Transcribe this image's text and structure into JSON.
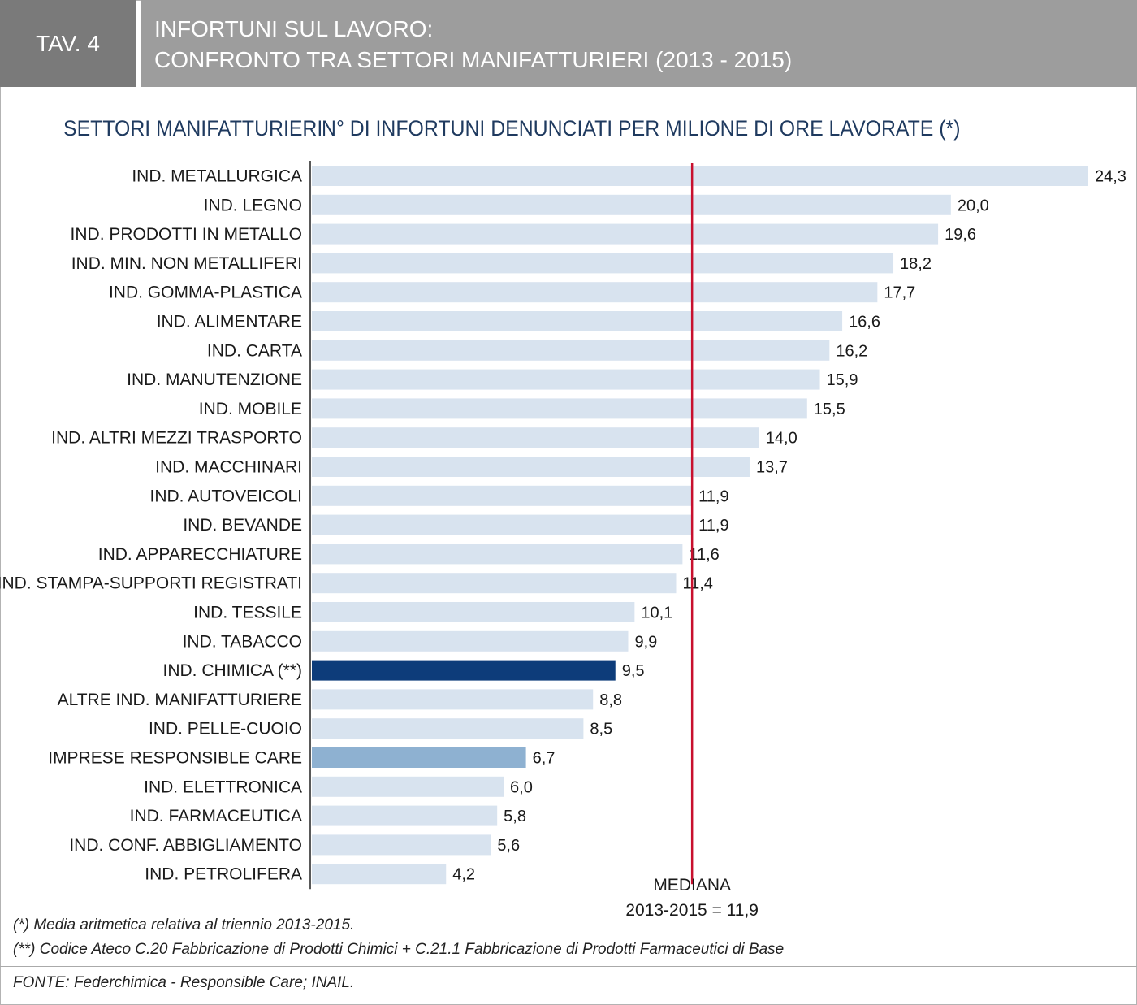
{
  "header": {
    "tav_label": "TAV. 4",
    "title_line1": "INFORTUNI SUL LAVORO:",
    "title_line2": "CONFRONTO TRA SETTORI MANIFATTURIERI (2013 - 2015)"
  },
  "columns": {
    "left_header": "SETTORI MANIFATTURIERI",
    "right_header": "N° DI INFORTUNI DENUNCIATI PER MILIONE DI ORE LAVORATE (*)"
  },
  "chart_data": {
    "type": "bar",
    "orientation": "horizontal",
    "categories": [
      "IND. METALLURGICA",
      "IND. LEGNO",
      "IND. PRODOTTI IN METALLO",
      "IND. MIN. NON METALLIFERI",
      "IND. GOMMA-PLASTICA",
      "IND. ALIMENTARE",
      "IND. CARTA",
      "IND. MANUTENZIONE",
      "IND. MOBILE",
      "IND. ALTRI MEZZI TRASPORTO",
      "IND. MACCHINARI",
      "IND. AUTOVEICOLI",
      "IND. BEVANDE",
      "IND. APPARECCHIATURE",
      "IND. STAMPA-SUPPORTI REGISTRATI",
      "IND. TESSILE",
      "IND. TABACCO",
      "IND. CHIMICA (**)",
      "ALTRE IND. MANIFATTURIERE",
      "IND. PELLE-CUOIO",
      "IMPRESE RESPONSIBLE CARE",
      "IND. ELETTRONICA",
      "IND. FARMACEUTICA",
      "IND. CONF. ABBIGLIAMENTO",
      "IND. PETROLIFERA"
    ],
    "values": [
      24.3,
      20.0,
      19.6,
      18.2,
      17.7,
      16.6,
      16.2,
      15.9,
      15.5,
      14.0,
      13.7,
      11.9,
      11.9,
      11.6,
      11.4,
      10.1,
      9.9,
      9.5,
      8.8,
      8.5,
      6.7,
      6.0,
      5.8,
      5.6,
      4.2
    ],
    "value_labels": [
      "24,3",
      "20,0",
      "19,6",
      "18,2",
      "17,7",
      "16,6",
      "16,2",
      "15,9",
      "15,5",
      "14,0",
      "13,7",
      "11,9",
      "11,9",
      "11,6",
      "11,4",
      "10,1",
      "9,9",
      "9,5",
      "8,8",
      "8,5",
      "6,7",
      "6,0",
      "5,8",
      "5,6",
      "4,2"
    ],
    "xlim": [
      0,
      24.3
    ],
    "median": 11.9,
    "median_label_line1": "MEDIANA",
    "median_label_line2": "2013-2015 = 11,9",
    "colors": {
      "default": "#d8e3ef",
      "highlight_chimica": "#0d3c7a",
      "highlight_responsible_care": "#8eb1d1",
      "median_line": "#c8102e",
      "axis": "#222222"
    },
    "highlights": {
      "IND. CHIMICA (**)": "highlight_chimica",
      "IMPRESE RESPONSIBLE CARE": "highlight_responsible_care"
    }
  },
  "footnotes": {
    "note1": "(*) Media aritmetica relativa al triennio 2013-2015.",
    "note2": "(**) Codice Ateco C.20 Fabbricazione di Prodotti Chimici + C.21.1 Fabbricazione di Prodotti Farmaceutici di Base",
    "source": "FONTE: Federchimica - Responsible Care; INAIL."
  }
}
